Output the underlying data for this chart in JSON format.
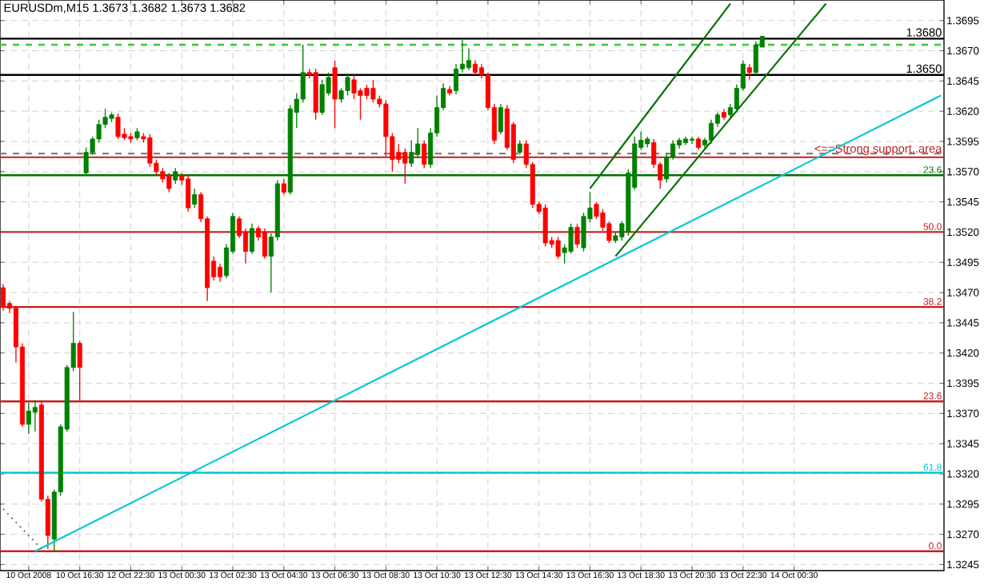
{
  "chart_data": {
    "type": "candlestick",
    "title": "EURUSDm,M15  1.3673 1.3682 1.3673 1.3682",
    "categories": [
      null,
      null,
      null,
      null,
      "10 Oct 2008",
      null,
      null,
      null,
      null,
      null,
      null,
      null,
      "10 Oct 16:30",
      null,
      null,
      null,
      null,
      null,
      null,
      null,
      "12 Oct 22:30",
      null,
      null,
      null,
      null,
      null,
      null,
      null,
      "13 Oct 00:30",
      null,
      null,
      null,
      null,
      null,
      null,
      null,
      "13 Oct 02:30",
      null,
      null,
      null,
      null,
      null,
      null,
      null,
      "13 Oct 04:30",
      null,
      null,
      null,
      null,
      null,
      null,
      null,
      "13 Oct 06:30",
      null,
      null,
      null,
      null,
      null,
      null,
      null,
      "13 Oct 08:30",
      null,
      null,
      null,
      null,
      null,
      null,
      null,
      "13 Oct 10:30",
      null,
      null,
      null,
      null,
      null,
      null,
      null,
      "13 Oct 12:30",
      null,
      null,
      null,
      null,
      null,
      null,
      null,
      "13 Oct 14:30",
      null,
      null,
      null,
      null,
      null,
      null,
      null,
      "13 Oct 16:30",
      null,
      null,
      null,
      null,
      null,
      null,
      null,
      "13 Oct 18:30",
      null,
      null,
      null,
      null,
      null,
      null,
      null,
      "13 Oct 20:30",
      null,
      null,
      null,
      null,
      null,
      null,
      null,
      "13 Oct 22:30",
      null,
      null,
      null,
      null,
      null,
      null,
      null,
      "14 Oct 00:30",
      null,
      null,
      null,
      null,
      null,
      null,
      null,
      null,
      null,
      null,
      null,
      null,
      null,
      null,
      null,
      null,
      null,
      null,
      null,
      null,
      null,
      null,
      null
    ],
    "ohlc": [
      [
        1.3474,
        1.3477,
        1.3455,
        1.3458
      ],
      [
        1.3461,
        1.3463,
        1.3453,
        1.3457
      ],
      [
        1.3457,
        1.3459,
        1.3412,
        1.3425
      ],
      [
        1.3425,
        1.3428,
        1.3359,
        1.3361
      ],
      [
        1.3361,
        1.3379,
        1.3353,
        1.3372
      ],
      [
        1.3371,
        1.3381,
        1.3355,
        1.3375
      ],
      [
        1.3377,
        1.3381,
        1.3297,
        1.3299
      ],
      [
        1.3299,
        1.3302,
        1.3258,
        1.3269
      ],
      [
        1.3266,
        1.3307,
        1.3256,
        1.3305
      ],
      [
        1.3305,
        1.3361,
        1.3302,
        1.3359
      ],
      [
        1.3357,
        1.341,
        1.3355,
        1.3408
      ],
      [
        1.3408,
        1.3454,
        1.3405,
        1.3428
      ],
      [
        1.3428,
        1.343,
        1.3381,
        1.3408
      ],
      [
        1.3569,
        1.359,
        1.3567,
        1.3586
      ],
      [
        1.3586,
        1.3599,
        1.3584,
        1.3597
      ],
      [
        1.3597,
        1.3613,
        1.3594,
        1.3609
      ],
      [
        1.3609,
        1.3622,
        1.3606,
        1.3615
      ],
      [
        1.3614,
        1.3619,
        1.3611,
        1.3617
      ],
      [
        1.3615,
        1.3618,
        1.3597,
        1.3599
      ],
      [
        1.3601,
        1.3606,
        1.3596,
        1.3598
      ],
      [
        1.3599,
        1.3602,
        1.3594,
        1.3597
      ],
      [
        1.3598,
        1.3606,
        1.3596,
        1.3603
      ],
      [
        1.3599,
        1.3602,
        1.3594,
        1.3597
      ],
      [
        1.3598,
        1.3601,
        1.3574,
        1.3577
      ],
      [
        1.3577,
        1.358,
        1.3567,
        1.357
      ],
      [
        1.357,
        1.3573,
        1.3561,
        1.3564
      ],
      [
        1.3567,
        1.3569,
        1.3553,
        1.3556
      ],
      [
        1.3563,
        1.3573,
        1.356,
        1.357
      ],
      [
        1.3567,
        1.3569,
        1.3559,
        1.3563
      ],
      [
        1.3564,
        1.3567,
        1.3537,
        1.354
      ],
      [
        1.3543,
        1.3556,
        1.354,
        1.3551
      ],
      [
        1.3551,
        1.3553,
        1.3528,
        1.3531
      ],
      [
        1.3531,
        1.3533,
        1.3463,
        1.3474
      ],
      [
        1.3496,
        1.35,
        1.348,
        1.3483
      ],
      [
        1.3491,
        1.3494,
        1.3479,
        1.3483
      ],
      [
        1.3484,
        1.351,
        1.3482,
        1.3507
      ],
      [
        1.3504,
        1.3536,
        1.3502,
        1.3533
      ],
      [
        1.3531,
        1.3533,
        1.3515,
        1.3517
      ],
      [
        1.352,
        1.3523,
        1.3494,
        1.3504
      ],
      [
        1.3504,
        1.3527,
        1.3502,
        1.3523
      ],
      [
        1.3523,
        1.3525,
        1.3513,
        1.3516
      ],
      [
        1.352,
        1.3523,
        1.3498,
        1.35
      ],
      [
        1.35,
        1.3519,
        1.347,
        1.3516
      ],
      [
        1.3516,
        1.3563,
        1.3513,
        1.356
      ],
      [
        1.356,
        1.3564,
        1.3551,
        1.3553
      ],
      [
        1.3553,
        1.3625,
        1.3551,
        1.3622
      ],
      [
        1.3619,
        1.3635,
        1.3606,
        1.363
      ],
      [
        1.363,
        1.3675,
        1.3627,
        1.3652
      ],
      [
        1.3652,
        1.3655,
        1.3647,
        1.365
      ],
      [
        1.3652,
        1.3655,
        1.3613,
        1.3619
      ],
      [
        1.3619,
        1.3646,
        1.3617,
        1.3642
      ],
      [
        1.3635,
        1.3652,
        1.3633,
        1.3648
      ],
      [
        1.3656,
        1.3662,
        1.3606,
        1.363
      ],
      [
        1.363,
        1.3639,
        1.3627,
        1.3637
      ],
      [
        1.3637,
        1.3651,
        1.3633,
        1.3648
      ],
      [
        1.3646,
        1.365,
        1.363,
        1.3635
      ],
      [
        1.3637,
        1.3639,
        1.3613,
        1.3633
      ],
      [
        1.3639,
        1.3642,
        1.363,
        1.3633
      ],
      [
        1.3639,
        1.3646,
        1.3627,
        1.363
      ],
      [
        1.363,
        1.3633,
        1.3623,
        1.3626
      ],
      [
        1.3626,
        1.3629,
        1.3582,
        1.3599
      ],
      [
        1.3599,
        1.3602,
        1.357,
        1.358
      ],
      [
        1.3586,
        1.3593,
        1.3577,
        1.358
      ],
      [
        1.3586,
        1.3589,
        1.356,
        1.3577
      ],
      [
        1.3577,
        1.3596,
        1.3574,
        1.3586
      ],
      [
        1.3584,
        1.3606,
        1.3581,
        1.3593
      ],
      [
        1.3593,
        1.3596,
        1.3573,
        1.3576
      ],
      [
        1.3576,
        1.3606,
        1.3573,
        1.3602
      ],
      [
        1.3602,
        1.3633,
        1.3599,
        1.3623
      ],
      [
        1.3623,
        1.3643,
        1.3621,
        1.3639
      ],
      [
        1.3638,
        1.3641,
        1.3633,
        1.3635
      ],
      [
        1.3637,
        1.3659,
        1.3634,
        1.3655
      ],
      [
        1.3655,
        1.3679,
        1.3652,
        1.3659
      ],
      [
        1.3656,
        1.3672,
        1.3654,
        1.3662
      ],
      [
        1.3659,
        1.3662,
        1.365,
        1.3652
      ],
      [
        1.3656,
        1.3659,
        1.3647,
        1.365
      ],
      [
        1.365,
        1.3652,
        1.3621,
        1.3623
      ],
      [
        1.3623,
        1.3626,
        1.3593,
        1.3596
      ],
      [
        1.3603,
        1.3626,
        1.3601,
        1.3623
      ],
      [
        1.3622,
        1.3625,
        1.3588,
        1.359
      ],
      [
        1.3609,
        1.3611,
        1.3577,
        1.358
      ],
      [
        1.3586,
        1.3596,
        1.3584,
        1.3593
      ],
      [
        1.3593,
        1.3596,
        1.3573,
        1.3576
      ],
      [
        1.3576,
        1.3578,
        1.354,
        1.3543
      ],
      [
        1.3543,
        1.3545,
        1.3535,
        1.3537
      ],
      [
        1.354,
        1.3543,
        1.3508,
        1.3511
      ],
      [
        1.3513,
        1.3516,
        1.3507,
        1.351
      ],
      [
        1.3513,
        1.3516,
        1.3498,
        1.35
      ],
      [
        1.3503,
        1.351,
        1.3494,
        1.3507
      ],
      [
        1.3504,
        1.3527,
        1.3502,
        1.3524
      ],
      [
        1.3524,
        1.3527,
        1.3507,
        1.351
      ],
      [
        1.3507,
        1.3536,
        1.3504,
        1.3533
      ],
      [
        1.3531,
        1.3553,
        1.3528,
        1.354
      ],
      [
        1.3543,
        1.3545,
        1.3531,
        1.3533
      ],
      [
        1.3536,
        1.3539,
        1.3521,
        1.3524
      ],
      [
        1.3527,
        1.3529,
        1.3511,
        1.3513
      ],
      [
        1.3513,
        1.352,
        1.3511,
        1.3517
      ],
      [
        1.3516,
        1.3529,
        1.3513,
        1.3527
      ],
      [
        1.352,
        1.3572,
        1.3517,
        1.3569
      ],
      [
        1.3557,
        1.3599,
        1.3555,
        1.3593
      ],
      [
        1.359,
        1.3603,
        1.3588,
        1.3596
      ],
      [
        1.3593,
        1.3599,
        1.359,
        1.3597
      ],
      [
        1.3594,
        1.3597,
        1.3573,
        1.3576
      ],
      [
        1.3576,
        1.3578,
        1.3556,
        1.3563
      ],
      [
        1.3564,
        1.3585,
        1.3561,
        1.3582
      ],
      [
        1.3582,
        1.3596,
        1.358,
        1.3593
      ],
      [
        1.3592,
        1.3598,
        1.3589,
        1.3596
      ],
      [
        1.3594,
        1.3599,
        1.3592,
        1.3597
      ],
      [
        1.3596,
        1.3599,
        1.3593,
        1.3597
      ],
      [
        1.3597,
        1.3599,
        1.3588,
        1.359
      ],
      [
        1.3592,
        1.3598,
        1.3589,
        1.3596
      ],
      [
        1.3596,
        1.3613,
        1.3593,
        1.361
      ],
      [
        1.361,
        1.3619,
        1.3607,
        1.3617
      ],
      [
        1.3619,
        1.3622,
        1.3613,
        1.3615
      ],
      [
        1.3617,
        1.3626,
        1.3614,
        1.3623
      ],
      [
        1.3622,
        1.3642,
        1.3619,
        1.3639
      ],
      [
        1.3639,
        1.3662,
        1.3637,
        1.3659
      ],
      [
        1.3656,
        1.3659,
        1.3646,
        1.3652
      ],
      [
        1.3652,
        1.3678,
        1.365,
        1.3675
      ],
      [
        1.3673,
        1.3682,
        1.3673,
        1.3682
      ],
      null,
      null,
      null,
      null,
      null,
      null,
      null,
      null,
      null,
      null,
      null,
      null,
      null,
      null,
      null,
      null,
      null,
      null,
      null,
      null,
      null,
      null,
      null,
      null,
      null,
      null,
      null,
      null
    ],
    "colors": [
      "#ff0000",
      "#ff0000",
      "#ff0000",
      "#ff0000",
      "#008000",
      "#008000",
      "#ff0000",
      "#ff0000",
      "#008000",
      "#008000",
      "#008000",
      "#008000",
      "#ff0000",
      "#008000",
      "#008000",
      "#008000",
      "#008000",
      "#008000",
      "#ff0000",
      "#ff0000",
      "#ff0000",
      "#008000",
      "#ff0000",
      "#ff0000",
      "#ff0000",
      "#ff0000",
      "#ff0000",
      "#008000",
      "#ff0000",
      "#ff0000",
      "#008000",
      "#ff0000",
      "#ff0000",
      "#ff0000",
      "#ff0000",
      "#008000",
      "#008000",
      "#ff0000",
      "#ff0000",
      "#008000",
      "#ff0000",
      "#ff0000",
      "#008000",
      "#008000",
      "#ff0000",
      "#008000",
      "#008000",
      "#008000",
      "#ff0000",
      "#ff0000",
      "#008000",
      "#008000",
      "#ff0000",
      "#008000",
      "#008000",
      "#ff0000",
      "#ff0000",
      "#ff0000",
      "#ff0000",
      "#ff0000",
      "#ff0000",
      "#ff0000",
      "#ff0000",
      "#ff0000",
      "#008000",
      "#008000",
      "#ff0000",
      "#008000",
      "#008000",
      "#008000",
      "#ff0000",
      "#008000",
      "#008000",
      "#008000",
      "#ff0000",
      "#ff0000",
      "#ff0000",
      "#ff0000",
      "#008000",
      "#ff0000",
      "#ff0000",
      "#008000",
      "#ff0000",
      "#ff0000",
      "#ff0000",
      "#ff0000",
      "#ff0000",
      "#ff0000",
      "#008000",
      "#008000",
      "#ff0000",
      "#008000",
      "#008000",
      "#ff0000",
      "#ff0000",
      "#ff0000",
      "#008000",
      "#008000",
      "#008000",
      "#008000",
      "#008000",
      "#008000",
      "#ff0000",
      "#ff0000",
      "#008000",
      "#008000",
      "#008000",
      "#008000",
      "#008000",
      "#ff0000",
      "#008000",
      "#008000",
      "#008000",
      "#ff0000",
      "#008000",
      "#008000",
      "#008000",
      "#ff0000",
      "#008000",
      "#008000",
      null,
      null,
      null,
      null,
      null,
      null,
      null,
      null,
      null,
      null,
      null,
      null,
      null,
      null,
      null,
      null,
      null,
      null,
      null,
      null,
      null,
      null,
      null,
      null,
      null,
      null,
      null,
      null
    ],
    "series": [
      {
        "type": "line",
        "color": "#00c8d8",
        "values": [
          null,
          null,
          null,
          null,
          null,
          1.3256,
          null,
          null,
          null,
          null,
          null,
          null,
          null,
          null,
          null,
          null,
          null,
          null,
          null,
          null,
          null,
          null,
          null,
          null,
          null,
          null,
          null,
          null,
          null,
          null,
          null,
          null,
          null,
          null,
          null,
          null,
          null,
          null,
          null,
          null,
          null,
          null,
          null,
          null,
          null,
          null,
          null,
          null,
          null,
          null,
          null,
          null,
          null,
          null,
          null,
          null,
          null,
          null,
          null,
          null,
          null,
          null,
          null,
          null,
          null,
          null,
          null,
          null,
          null,
          null,
          null,
          null,
          null,
          null,
          null,
          null,
          null,
          null,
          null,
          null,
          null,
          null,
          null,
          null,
          null,
          null,
          null,
          null,
          null,
          null,
          null,
          null,
          null,
          null,
          null,
          null,
          null,
          null,
          null,
          null,
          null,
          null,
          null,
          null,
          null,
          null,
          null,
          null,
          null,
          null,
          null,
          null,
          null,
          null,
          null,
          null,
          null,
          null,
          null,
          null,
          null,
          null,
          null,
          null,
          null,
          null,
          null,
          null,
          null,
          null,
          null,
          null,
          null,
          null,
          null,
          null,
          null,
          null,
          null,
          null,
          null,
          null,
          null,
          null,
          null,
          null,
          null,
          1.3633
        ]
      },
      {
        "type": "line",
        "color": "#007000",
        "values": [
          null,
          null,
          null,
          null,
          null,
          null,
          null,
          null,
          null,
          null,
          null,
          null,
          null,
          null,
          null,
          null,
          null,
          null,
          null,
          null,
          null,
          null,
          null,
          null,
          null,
          null,
          null,
          null,
          null,
          null,
          null,
          null,
          null,
          null,
          null,
          null,
          null,
          null,
          null,
          null,
          null,
          null,
          null,
          null,
          null,
          null,
          null,
          null,
          null,
          null,
          null,
          null,
          null,
          null,
          null,
          null,
          null,
          null,
          null,
          null,
          null,
          null,
          null,
          null,
          null,
          null,
          null,
          null,
          null,
          null,
          null,
          null,
          null,
          null,
          null,
          null,
          null,
          null,
          null,
          null,
          null,
          null,
          null,
          null,
          null,
          null,
          null,
          null,
          null,
          null,
          null,
          null,
          1.3556,
          null,
          null,
          null,
          null,
          null,
          null,
          null,
          null,
          null,
          null,
          null,
          null,
          null,
          null,
          null,
          null,
          null,
          null,
          null,
          null,
          null,
          1.3709,
          null,
          null,
          null,
          null,
          null,
          null,
          null,
          null,
          null,
          null,
          null,
          null,
          null,
          null,
          null,
          null,
          null,
          null,
          null,
          null,
          null,
          null,
          null,
          null,
          null,
          null,
          null,
          null,
          null,
          null,
          null,
          null,
          null
        ]
      },
      {
        "type": "line",
        "color": "#007000",
        "values": [
          null,
          null,
          null,
          null,
          null,
          null,
          null,
          null,
          null,
          null,
          null,
          null,
          null,
          null,
          null,
          null,
          null,
          null,
          null,
          null,
          null,
          null,
          null,
          null,
          null,
          null,
          null,
          null,
          null,
          null,
          null,
          null,
          null,
          null,
          null,
          null,
          null,
          null,
          null,
          null,
          null,
          null,
          null,
          null,
          null,
          null,
          null,
          null,
          null,
          null,
          null,
          null,
          null,
          null,
          null,
          null,
          null,
          null,
          null,
          null,
          null,
          null,
          null,
          null,
          null,
          null,
          null,
          null,
          null,
          null,
          null,
          null,
          null,
          null,
          null,
          null,
          null,
          null,
          null,
          null,
          null,
          null,
          null,
          null,
          null,
          null,
          null,
          null,
          null,
          null,
          null,
          null,
          null,
          null,
          null,
          null,
          1.35,
          null,
          null,
          null,
          null,
          null,
          null,
          null,
          null,
          null,
          null,
          null,
          null,
          null,
          null,
          null,
          null,
          null,
          null,
          null,
          null,
          null,
          null,
          null,
          null,
          null,
          null,
          null,
          null,
          null,
          null,
          null,
          null,
          1.3709,
          null,
          null,
          null,
          null,
          null,
          null,
          null,
          null,
          null,
          null,
          null,
          null,
          null,
          null,
          null,
          null,
          null,
          null
        ]
      },
      {
        "type": "line",
        "color": "#808080",
        "line_style": "dotted",
        "values": [
          1.3291,
          null,
          null,
          null,
          null,
          null,
          1.3258,
          null,
          null,
          null,
          null,
          null,
          null,
          null,
          null,
          null,
          null,
          null,
          null,
          null,
          null,
          null,
          null,
          null,
          null,
          null,
          null,
          null,
          null,
          null,
          null,
          null,
          null,
          null,
          null,
          null,
          null,
          null,
          null,
          null,
          null,
          null,
          null,
          null,
          null,
          null,
          null,
          null,
          null,
          null,
          null,
          null,
          null,
          null,
          null,
          null,
          null,
          null,
          null,
          null,
          null,
          null,
          null,
          null,
          null,
          null,
          null,
          null,
          null,
          null,
          null,
          null,
          null,
          null,
          null,
          null,
          null,
          null,
          null,
          null,
          null,
          null,
          null,
          null,
          null,
          null,
          null,
          null,
          null,
          null,
          null,
          null,
          null,
          null,
          null,
          null,
          null,
          null,
          null,
          null,
          null,
          null,
          null,
          null,
          null,
          null,
          null,
          null,
          null,
          null,
          null,
          null,
          null,
          null,
          null,
          null,
          null,
          null,
          null,
          null,
          null,
          null,
          null,
          null,
          null,
          null,
          null,
          null,
          null,
          null,
          null,
          null,
          null,
          null,
          null,
          null,
          null,
          null,
          null,
          null,
          null,
          null,
          null,
          null,
          null,
          null,
          null,
          null
        ]
      }
    ],
    "annotations": [
      {
        "text": "23.6",
        "y": 1.3567
      },
      {
        "text": "50.0",
        "y": 1.352
      },
      {
        "text": "38.2",
        "y": 1.3458
      },
      {
        "text": "23.6",
        "y": 1.338
      },
      {
        "text": "61.8",
        "y": 1.3321
      },
      {
        "text": "0.0",
        "y": 1.3256
      }
    ],
    "ref_lines": [
      {
        "axis": "y",
        "value": 1.368,
        "label": "1.3680",
        "color": "#000000"
      },
      {
        "axis": "y",
        "value": 1.365,
        "label": "1.3650",
        "color": "#000000"
      },
      {
        "axis": "y",
        "value": 1.3675,
        "color": "#33cc33",
        "line_style": "dashed"
      },
      {
        "axis": "y",
        "value": 1.3585,
        "color": "#808080",
        "line_style": "dashed"
      },
      {
        "axis": "y",
        "value": 1.3582,
        "label": "<==Strong support..area",
        "color": "#c02020"
      },
      {
        "axis": "y",
        "value": 1.3567,
        "color": "#007000"
      },
      {
        "axis": "y",
        "value": 1.352,
        "color": "#c02020"
      },
      {
        "axis": "y",
        "value": 1.3458,
        "color": "#c02020"
      },
      {
        "axis": "y",
        "value": 1.338,
        "color": "#c02020"
      },
      {
        "axis": "y",
        "value": 1.3321,
        "color": "#00c8d8"
      },
      {
        "axis": "y",
        "value": 1.3256,
        "color": "#c02020"
      }
    ],
    "ylim": [
      1.324,
      1.3712
    ],
    "yticks": [
      1.3695,
      {
        "value": 1.367,
        "label": "1.3670"
      },
      1.3645,
      {
        "value": 1.362,
        "label": "1.3620"
      },
      1.3595,
      {
        "value": 1.357,
        "label": "1.3570"
      },
      1.3545,
      {
        "value": 1.352,
        "label": "1.3520"
      },
      1.3495,
      {
        "value": 1.347,
        "label": "1.3470"
      },
      1.3445,
      {
        "value": 1.342,
        "label": "1.3420"
      },
      1.3395,
      {
        "value": 1.337,
        "label": "1.3370"
      },
      1.3345,
      {
        "value": 1.332,
        "label": "1.3320"
      },
      1.3295,
      {
        "value": 1.327,
        "label": "1.3270"
      },
      1.3245
    ],
    "grid": true
  }
}
